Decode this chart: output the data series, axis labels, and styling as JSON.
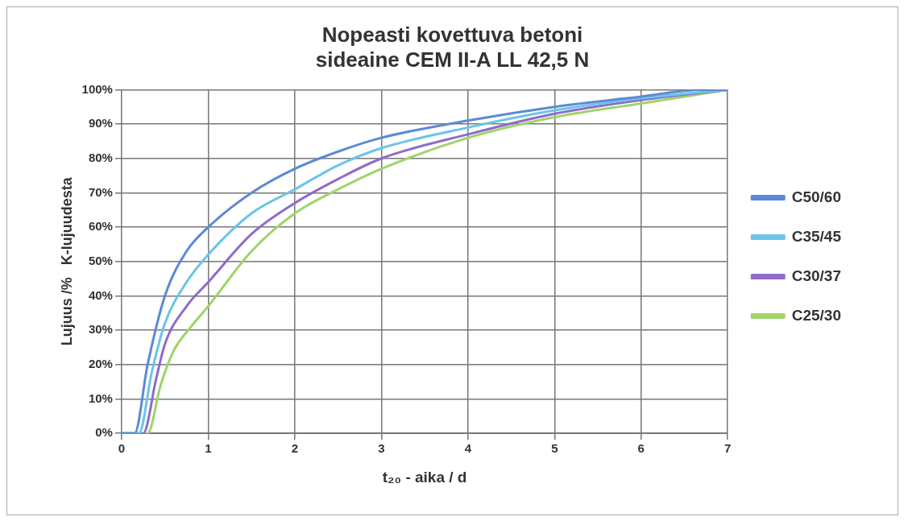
{
  "chart_data": {
    "type": "line",
    "title": "Nopeasti kovettuva betoni\nsideaine CEM II-A LL 42,5 N",
    "xlabel": "t₂₀ - aika / d",
    "ylabel": "Lujuus /%   K-lujuudesta",
    "xlim": [
      0,
      7
    ],
    "xticks": [
      0,
      1,
      2,
      3,
      4,
      5,
      6,
      7
    ],
    "ylim": [
      0,
      100
    ],
    "yticks": [
      {
        "value": 0,
        "label": "0%"
      },
      {
        "value": 10,
        "label": "10%"
      },
      {
        "value": 20,
        "label": "20%"
      },
      {
        "value": 30,
        "label": "30%"
      },
      {
        "value": 40,
        "label": "40%"
      },
      {
        "value": 50,
        "label": "50%"
      },
      {
        "value": 60,
        "label": "60%"
      },
      {
        "value": 70,
        "label": "70%"
      },
      {
        "value": 80,
        "label": "80%"
      },
      {
        "value": 90,
        "label": "90%"
      },
      {
        "value": 100,
        "label": "100%"
      }
    ],
    "grid": true,
    "legend": "right",
    "marker": "none",
    "line_style": "solid",
    "series": [
      {
        "name": "C50/60",
        "color": "#5b8ad6",
        "x": [
          0,
          0.15,
          0.3,
          0.5,
          0.75,
          1,
          1.5,
          2,
          2.5,
          3,
          4,
          5,
          6,
          6.7,
          7
        ],
        "values": [
          0,
          0,
          20,
          40,
          53,
          60,
          70,
          77,
          82,
          86,
          91,
          95,
          98,
          100,
          100
        ]
      },
      {
        "name": "C35/45",
        "color": "#6cc4e8",
        "x": [
          0,
          0.2,
          0.35,
          0.5,
          0.75,
          1,
          1.5,
          2,
          2.5,
          3,
          4,
          5,
          6,
          7
        ],
        "values": [
          0,
          0,
          18,
          32,
          44,
          52,
          64,
          71,
          78,
          83,
          89,
          94,
          97.5,
          100
        ]
      },
      {
        "name": "C30/37",
        "color": "#8e6cc9",
        "x": [
          0,
          0.25,
          0.4,
          0.5,
          0.75,
          1,
          1.5,
          2,
          2.5,
          3,
          4,
          5,
          6,
          7
        ],
        "values": [
          0,
          0,
          16,
          26,
          37,
          44,
          58,
          67,
          74,
          80,
          87,
          93,
          97,
          100
        ]
      },
      {
        "name": "C25/30",
        "color": "#9fd46a",
        "x": [
          0,
          0.3,
          0.45,
          0.6,
          0.8,
          1,
          1.5,
          2,
          2.5,
          3,
          4,
          5,
          6,
          7
        ],
        "values": [
          0,
          0,
          14,
          24,
          31,
          37,
          53,
          64,
          71,
          77,
          86,
          92,
          96,
          100
        ]
      }
    ]
  }
}
